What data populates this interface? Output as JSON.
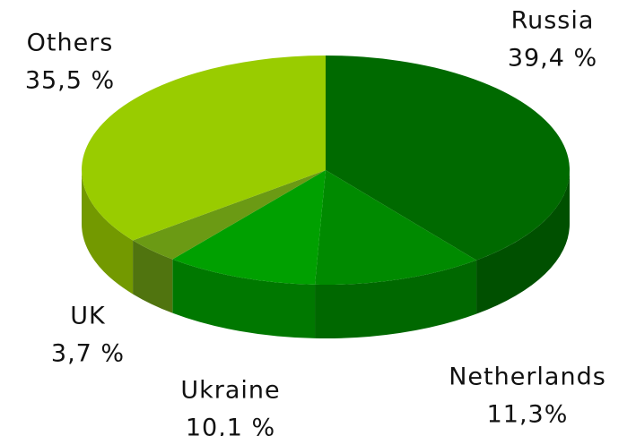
{
  "chart_data": {
    "type": "pie",
    "categories": [
      "Russia",
      "Netherlands",
      "Ukraine",
      "UK",
      "Others"
    ],
    "values": [
      39.4,
      11.3,
      10.1,
      3.7,
      35.5
    ],
    "value_labels": [
      "39,4 %",
      "11,3%",
      "10,1 %",
      "3,7 %",
      "35,5 %"
    ],
    "colors": [
      "#006a00",
      "#008a00",
      "#00a000",
      "#6b9a14",
      "#99cc00"
    ]
  }
}
